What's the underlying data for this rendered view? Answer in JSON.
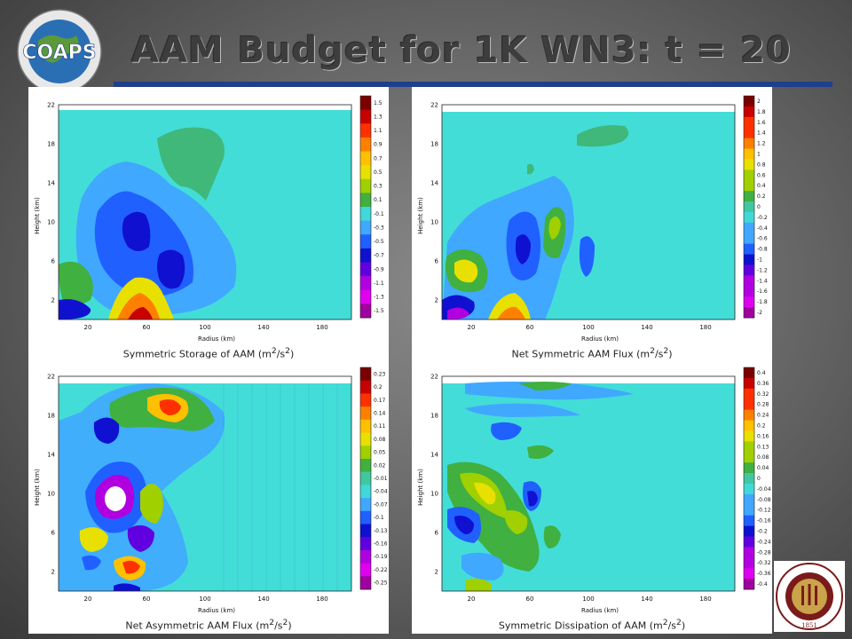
{
  "slide": {
    "title": "AAM Budget for 1K WN3:  t = 20",
    "accent_color": "#1f3f8c"
  },
  "logos": {
    "coaps": {
      "text": "COAPS",
      "ring_text": "Florida State University · Center for Ocean-Atmospheric Prediction Studies",
      "icon": "globe-icon"
    },
    "fsu": {
      "text": "FLORIDA STATE UNIVERSITY",
      "year": "1851",
      "icon": "seal-icon"
    }
  },
  "panels": [
    {
      "caption": "Symmetric Storage of AAM (m",
      "caption_unit": "2",
      "caption_tail": "/s",
      "caption_unit2": "2",
      "caption_end": ")",
      "xlabel": "Radius (km)",
      "ylabel": "Height (km)",
      "x_ticks": [
        "20",
        "60",
        "100",
        "140",
        "180"
      ],
      "y_ticks": [
        "2",
        "6",
        "10",
        "14",
        "18",
        "22"
      ],
      "colorbar": [
        "1.5",
        "1.3",
        "1.1",
        "0.9",
        "0.7",
        "0.5",
        "0.3",
        "0.1",
        "-0.1",
        "-0.3",
        "-0.5",
        "-0.7",
        "-0.9",
        "-1.1",
        "-1.3",
        "-1.5"
      ]
    },
    {
      "caption": "Net Symmetric AAM Flux (m",
      "caption_unit": "2",
      "caption_tail": "/s",
      "caption_unit2": "2",
      "caption_end": ")",
      "xlabel": "Radius (km)",
      "ylabel": "Height (km)",
      "x_ticks": [
        "20",
        "60",
        "100",
        "140",
        "180"
      ],
      "y_ticks": [
        "2",
        "6",
        "10",
        "14",
        "18",
        "22"
      ],
      "colorbar": [
        "2",
        "1.8",
        "1.6",
        "1.4",
        "1.2",
        "1",
        "0.8",
        "0.6",
        "0.4",
        "0.2",
        "0",
        "-0.2",
        "-0.4",
        "-0.6",
        "-0.8",
        "-1",
        "-1.2",
        "-1.4",
        "-1.6",
        "-1.8",
        "-2"
      ]
    },
    {
      "caption": "Net Asymmetric AAM Flux (m",
      "caption_unit": "2",
      "caption_tail": "/s",
      "caption_unit2": "2",
      "caption_end": ")",
      "xlabel": "Radius (km)",
      "ylabel": "Height (km)",
      "x_ticks": [
        "20",
        "60",
        "100",
        "140",
        "180"
      ],
      "y_ticks": [
        "2",
        "6",
        "10",
        "14",
        "18",
        "22"
      ],
      "colorbar": [
        "0.23",
        "0.2",
        "0.17",
        "0.14",
        "0.11",
        "0.08",
        "0.05",
        "0.02",
        "-0.01",
        "-0.04",
        "-0.07",
        "-0.1",
        "-0.13",
        "-0.16",
        "-0.19",
        "-0.22",
        "-0.25"
      ]
    },
    {
      "caption": "Symmetric Dissipation of AAM (m",
      "caption_unit": "2",
      "caption_tail": "/s",
      "caption_unit2": "2",
      "caption_end": ")",
      "xlabel": "Radius (km)",
      "ylabel": "Height (km)",
      "x_ticks": [
        "20",
        "60",
        "100",
        "140",
        "180"
      ],
      "y_ticks": [
        "2",
        "6",
        "10",
        "14",
        "18",
        "22"
      ],
      "colorbar": [
        "0.4",
        "0.36",
        "0.32",
        "0.28",
        "0.24",
        "0.2",
        "0.16",
        "0.13",
        "0.08",
        "0.04",
        "0",
        "-0.04",
        "-0.08",
        "-0.12",
        "-0.16",
        "-0.2",
        "-0.24",
        "-0.28",
        "-0.32",
        "-0.36",
        "-0.4"
      ]
    }
  ],
  "colorbar_colors": [
    "#7a0000",
    "#c80000",
    "#ff3000",
    "#ff8000",
    "#ffc000",
    "#e8e000",
    "#a0d000",
    "#40b040",
    "#40c8a0",
    "#40d8d8",
    "#40a8ff",
    "#2060ff",
    "#1010d0",
    "#6000e0",
    "#b000e0",
    "#e000f0",
    "#a000a0"
  ],
  "field_background": "#43ddd8"
}
